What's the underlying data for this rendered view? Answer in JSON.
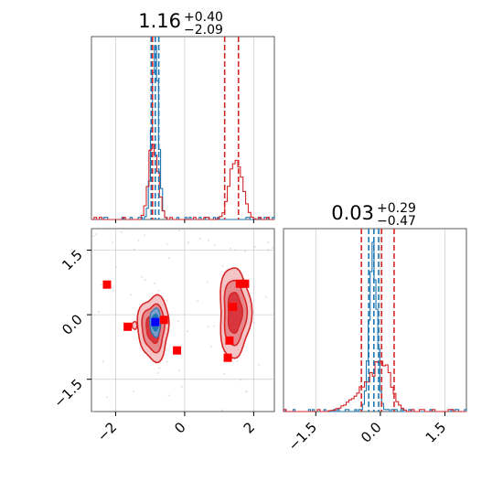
{
  "chart_data": [
    {
      "type": "histogram",
      "panel": "top-left marginal (parameter 1)",
      "title": {
        "value": "1.16",
        "upper": "+0.40",
        "lower": "−2.09"
      },
      "x_range": [
        -2.7,
        2.6
      ],
      "grid": true,
      "series": [
        {
          "color": "#1f77b4",
          "peaks": [
            {
              "center": -0.85,
              "width": 0.1,
              "height": 1.0
            }
          ]
        },
        {
          "color": "#d62728",
          "peaks": [
            {
              "center": -0.9,
              "width": 0.13,
              "height": 0.47
            },
            {
              "center": 1.5,
              "width": 0.18,
              "height": 0.38
            }
          ]
        }
      ],
      "quantile_lines": [
        {
          "color": "#1f77b4",
          "x": [
            -0.97,
            -0.85,
            -0.75
          ]
        },
        {
          "color": "#d62728",
          "x": [
            -0.93,
            1.16,
            1.56
          ]
        }
      ]
    },
    {
      "type": "histogram",
      "panel": "bottom-right marginal (parameter 2)",
      "title": {
        "value": "0.03",
        "upper": "+0.29",
        "lower": "−0.47"
      },
      "x_range": [
        -2.25,
        2.0
      ],
      "x_ticks": [
        -1.5,
        0.0,
        1.5
      ],
      "x_tick_labels": [
        "−1.5",
        "0.0",
        "1.5"
      ],
      "grid": true,
      "series": [
        {
          "color": "#1f77b4",
          "peaks": [
            {
              "center": -0.17,
              "width": 0.09,
              "height": 1.0
            }
          ]
        },
        {
          "color": "#d62728",
          "peaks": [
            {
              "center": 0.05,
              "width": 0.2,
              "height": 0.26
            },
            {
              "center": -0.4,
              "width": 0.3,
              "height": 0.12
            }
          ]
        }
      ],
      "quantile_lines": [
        {
          "color": "#1f77b4",
          "x": [
            -0.27,
            -0.15,
            -0.04
          ]
        },
        {
          "color": "#d62728",
          "x": [
            -0.44,
            0.03,
            0.32
          ]
        }
      ]
    },
    {
      "type": "contour",
      "panel": "bottom-left 2D joint (param 1 vs param 2)",
      "x_range": [
        -2.7,
        2.6
      ],
      "y_range": [
        -2.25,
        2.0
      ],
      "x_ticks": [
        -2,
        0,
        2
      ],
      "x_tick_labels": [
        "−2",
        "0",
        "2"
      ],
      "y_ticks": [
        -1.5,
        0.0,
        1.5
      ],
      "y_tick_labels": [
        "−1.5",
        "0.0",
        "1.5"
      ],
      "grid": true,
      "modes": [
        {
          "cx": -0.9,
          "cy": -0.3,
          "rx": 0.45,
          "ry": 0.75
        },
        {
          "cx": 1.45,
          "cy": 0.05,
          "rx": 0.45,
          "ry": 1.05
        }
      ],
      "blue_contour": {
        "cx": -0.85,
        "cy": -0.18,
        "rx": 0.1,
        "ry": 0.28
      },
      "red_markers": [
        {
          "x": -2.25,
          "y": 0.7
        },
        {
          "x": -1.65,
          "y": -0.28
        },
        {
          "x": -0.6,
          "y": -0.12
        },
        {
          "x": -0.22,
          "y": -0.83
        },
        {
          "x": 1.4,
          "y": 0.18
        },
        {
          "x": 1.6,
          "y": 0.72
        },
        {
          "x": 1.75,
          "y": 0.72
        },
        {
          "x": 1.3,
          "y": -0.6
        },
        {
          "x": 1.25,
          "y": -1.0
        }
      ],
      "blue_markers": [
        {
          "x": -0.85,
          "y": -0.17
        }
      ]
    }
  ],
  "colors": {
    "blue": "#1f77b4",
    "red": "#d62728",
    "red_fill_light": "#f4c4c6",
    "red_fill_mid": "#e6898d",
    "red_fill_dark": "#d9373f",
    "grid": "#b0b0b0"
  }
}
